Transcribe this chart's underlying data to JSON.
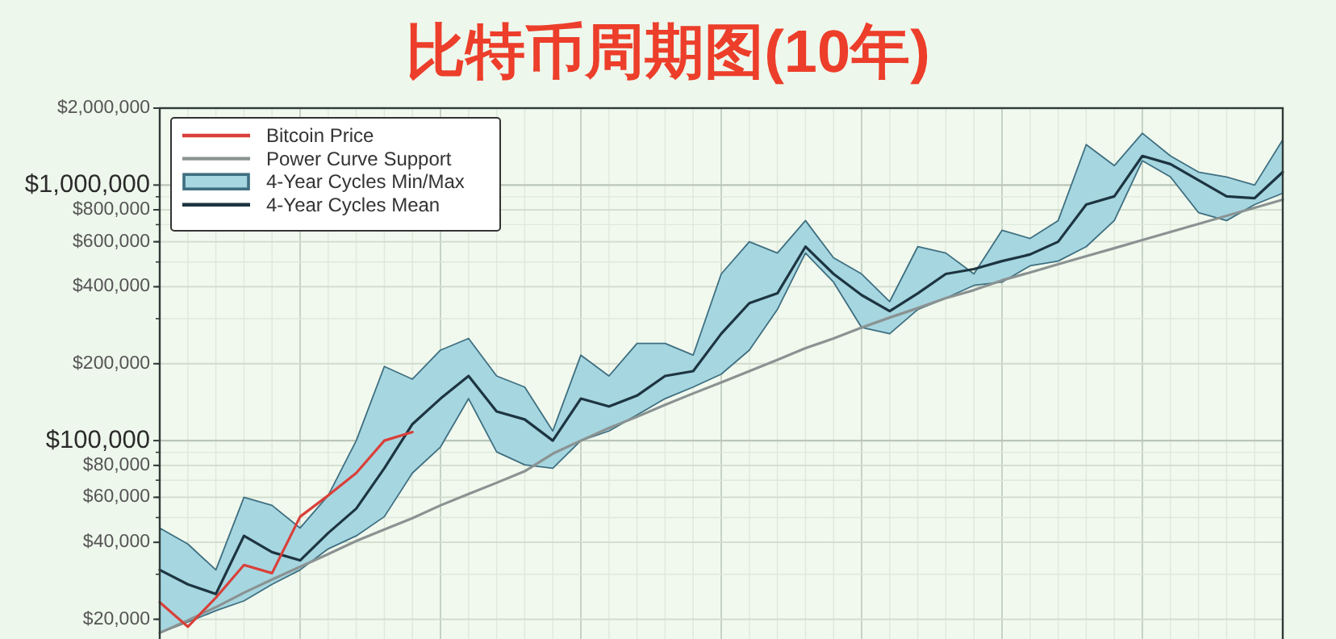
{
  "chart_data": {
    "type": "line",
    "title": "比特币周期图(10年)",
    "log": "y",
    "grid": true,
    "legend": "top left",
    "categories": [
      null,
      null,
      null,
      null,
      null,
      null,
      null,
      null,
      null,
      null,
      null,
      null,
      null,
      null,
      null,
      null,
      null,
      null,
      null,
      null,
      null,
      null,
      null,
      null,
      null,
      null,
      null,
      null,
      null,
      null,
      null,
      null,
      null,
      null,
      null,
      null,
      null,
      null,
      null,
      null,
      null
    ],
    "ylim": [
      16500,
      2000000
    ],
    "yticks": [
      {
        "value": 20000,
        "label": "$20,000"
      },
      {
        "value": 40000,
        "label": "$40,000"
      },
      {
        "value": 60000,
        "label": "$60,000"
      },
      {
        "value": 80000,
        "label": "$80,000"
      },
      {
        "value": 100000,
        "label": "$100,000"
      },
      {
        "value": 200000,
        "label": "$200,000"
      },
      {
        "value": 400000,
        "label": "$400,000"
      },
      {
        "value": 600000,
        "label": "$600,000"
      },
      {
        "value": 800000,
        "label": "$800,000"
      },
      {
        "value": 1000000,
        "label": "$1,000,000"
      },
      {
        "value": 2000000,
        "label": "$2,000,000"
      }
    ],
    "series": [
      {
        "name": "Bitcoin Price",
        "color": "#d9403a",
        "values": [
          23300,
          18700,
          24300,
          32600,
          30300,
          50400,
          61000,
          74700,
          100000,
          108000,
          null,
          null,
          null,
          null,
          null,
          null,
          null,
          null,
          null,
          null,
          null,
          null,
          null,
          null,
          null,
          null,
          null,
          null,
          null,
          null,
          null,
          null,
          null,
          null,
          null,
          null,
          null,
          null,
          null,
          null,
          null
        ]
      },
      {
        "name": "Power Curve Support",
        "color": "#8a9392",
        "values": [
          17700,
          19800,
          22300,
          25400,
          28600,
          32100,
          36000,
          40500,
          44900,
          49700,
          55800,
          61800,
          68400,
          75900,
          88900,
          100000,
          112000,
          124000,
          138000,
          153000,
          169000,
          187000,
          207000,
          230000,
          251000,
          277000,
          303000,
          330000,
          361000,
          388000,
          424000,
          455000,
          490000,
          527000,
          566000,
          609000,
          655000,
          705000,
          758000,
          815000,
          877000
        ]
      },
      {
        "name": "4-Year Cycles Min/Max",
        "type": "area",
        "color": "#a6d6e0",
        "values": [
          null,
          null,
          null,
          null,
          null,
          null,
          null,
          null,
          null,
          null,
          null,
          null,
          null,
          null,
          null,
          null,
          null,
          null,
          null,
          null,
          null,
          null,
          null,
          null,
          null,
          null,
          null,
          null,
          null,
          null,
          null,
          null,
          null,
          null,
          null,
          null,
          null,
          null,
          null,
          null,
          null
        ],
        "lower": [
          17700,
          19500,
          21600,
          23600,
          27400,
          31200,
          37700,
          42400,
          50400,
          74700,
          94400,
          146000,
          90300,
          80400,
          78000,
          100000,
          109000,
          126000,
          146000,
          162000,
          182000,
          226000,
          326000,
          542000,
          417000,
          277000,
          262000,
          326000,
          361000,
          405000,
          417000,
          483000,
          504000,
          574000,
          726000,
          1245000,
          1076000,
          780000,
          726000,
          839000,
          929000
        ],
        "upper": [
          45500,
          39400,
          31200,
          60000,
          55800,
          45500,
          61000,
          100000,
          195000,
          174000,
          226000,
          251000,
          179000,
          162000,
          109000,
          216000,
          179000,
          240000,
          240000,
          216000,
          449000,
          600000,
          542000,
          726000,
          519000,
          449000,
          350000,
          574000,
          542000,
          449000,
          665000,
          618000,
          726000,
          1440000,
          1191000,
          1595000,
          1300000,
          1124000,
          1076000,
          1000000,
          1503000
        ]
      },
      {
        "name": "4-Year Cycles Mean",
        "color": "#1d3541",
        "values": [
          31200,
          27400,
          25100,
          42400,
          36600,
          34000,
          43500,
          54200,
          78000,
          116000,
          146000,
          179000,
          130000,
          121000,
          100000,
          146000,
          136000,
          150000,
          179000,
          187000,
          262000,
          345000,
          377000,
          574000,
          449000,
          371000,
          321000,
          377000,
          449000,
          469000,
          504000,
          535000,
          600000,
          839000,
          903000,
          1300000,
          1208000,
          1045000,
          903000,
          889000,
          1124000
        ]
      }
    ]
  }
}
